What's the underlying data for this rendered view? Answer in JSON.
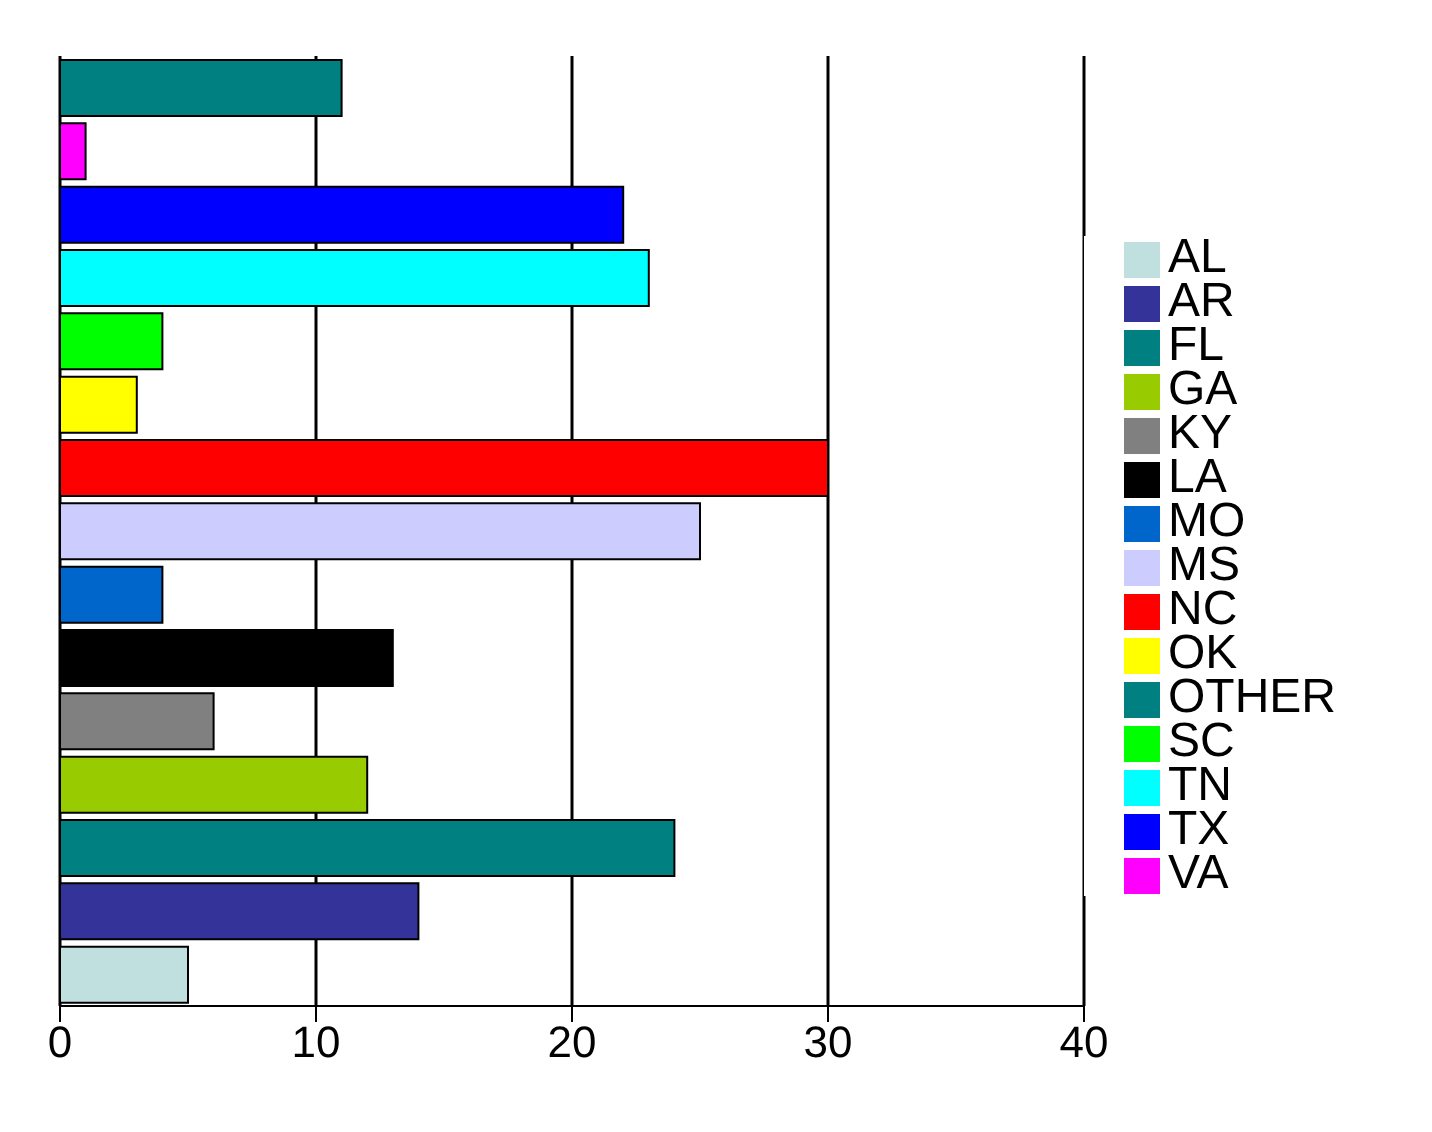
{
  "chart_data": {
    "type": "bar",
    "orientation": "horizontal",
    "stacked": true,
    "categories": [
      null,
      null,
      null,
      null,
      null,
      null,
      null,
      null,
      null,
      null,
      null,
      null,
      null,
      null,
      null
    ],
    "series": [
      {
        "name": "OTHER",
        "color": "#008080",
        "values": [
          11,
          null,
          null,
          null,
          null,
          null,
          null,
          null,
          null,
          null,
          null,
          null,
          null,
          null,
          null
        ]
      },
      {
        "name": "VA",
        "color": "#ff00ff",
        "values": [
          null,
          1,
          null,
          null,
          null,
          null,
          null,
          null,
          null,
          null,
          null,
          null,
          null,
          null,
          null
        ]
      },
      {
        "name": "TX",
        "color": "#0000ff",
        "values": [
          null,
          null,
          22,
          null,
          null,
          null,
          null,
          null,
          null,
          null,
          null,
          null,
          null,
          null,
          null
        ]
      },
      {
        "name": "TN",
        "color": "#00ffff",
        "values": [
          null,
          null,
          null,
          23,
          null,
          null,
          null,
          null,
          null,
          null,
          null,
          null,
          null,
          null,
          null
        ]
      },
      {
        "name": "SC",
        "color": "#00ff00",
        "values": [
          null,
          null,
          null,
          null,
          4,
          null,
          null,
          null,
          null,
          null,
          null,
          null,
          null,
          null,
          null
        ]
      },
      {
        "name": "OK",
        "color": "#ffff00",
        "values": [
          null,
          null,
          null,
          null,
          null,
          3,
          null,
          null,
          null,
          null,
          null,
          null,
          null,
          null,
          null
        ]
      },
      {
        "name": "NC",
        "color": "#ff0000",
        "values": [
          null,
          null,
          null,
          null,
          null,
          null,
          30,
          null,
          null,
          null,
          null,
          null,
          null,
          null,
          null
        ]
      },
      {
        "name": "MS",
        "color": "#ccccff",
        "values": [
          null,
          null,
          null,
          null,
          null,
          null,
          null,
          25,
          null,
          null,
          null,
          null,
          null,
          null,
          null
        ]
      },
      {
        "name": "MO",
        "color": "#0066cc",
        "values": [
          null,
          null,
          null,
          null,
          null,
          null,
          null,
          null,
          4,
          null,
          null,
          null,
          null,
          null,
          null
        ]
      },
      {
        "name": "LA",
        "color": "#000000",
        "values": [
          null,
          null,
          null,
          null,
          null,
          null,
          null,
          null,
          null,
          13,
          null,
          null,
          null,
          null,
          null
        ]
      },
      {
        "name": "KY",
        "color": "#808080",
        "values": [
          null,
          null,
          null,
          null,
          null,
          null,
          null,
          null,
          null,
          null,
          6,
          null,
          null,
          null,
          null
        ]
      },
      {
        "name": "GA",
        "color": "#99cc00",
        "values": [
          null,
          null,
          null,
          null,
          null,
          null,
          null,
          null,
          null,
          null,
          null,
          12,
          null,
          null,
          null
        ]
      },
      {
        "name": "FL",
        "color": "#008080",
        "values": [
          null,
          null,
          null,
          null,
          null,
          null,
          null,
          null,
          null,
          null,
          null,
          null,
          24,
          null,
          null
        ]
      },
      {
        "name": "AR",
        "color": "#333399",
        "values": [
          null,
          null,
          null,
          null,
          null,
          null,
          null,
          null,
          null,
          null,
          null,
          null,
          null,
          14,
          null
        ]
      },
      {
        "name": "AL",
        "color": "#c0e0e0",
        "values": [
          null,
          null,
          null,
          null,
          null,
          null,
          null,
          null,
          null,
          null,
          null,
          null,
          null,
          null,
          5
        ]
      }
    ],
    "xlim": [
      0,
      40
    ],
    "xticks": [
      0,
      10,
      20,
      30,
      40
    ],
    "grid": "x",
    "legend": "right",
    "tick_labels": "x"
  }
}
